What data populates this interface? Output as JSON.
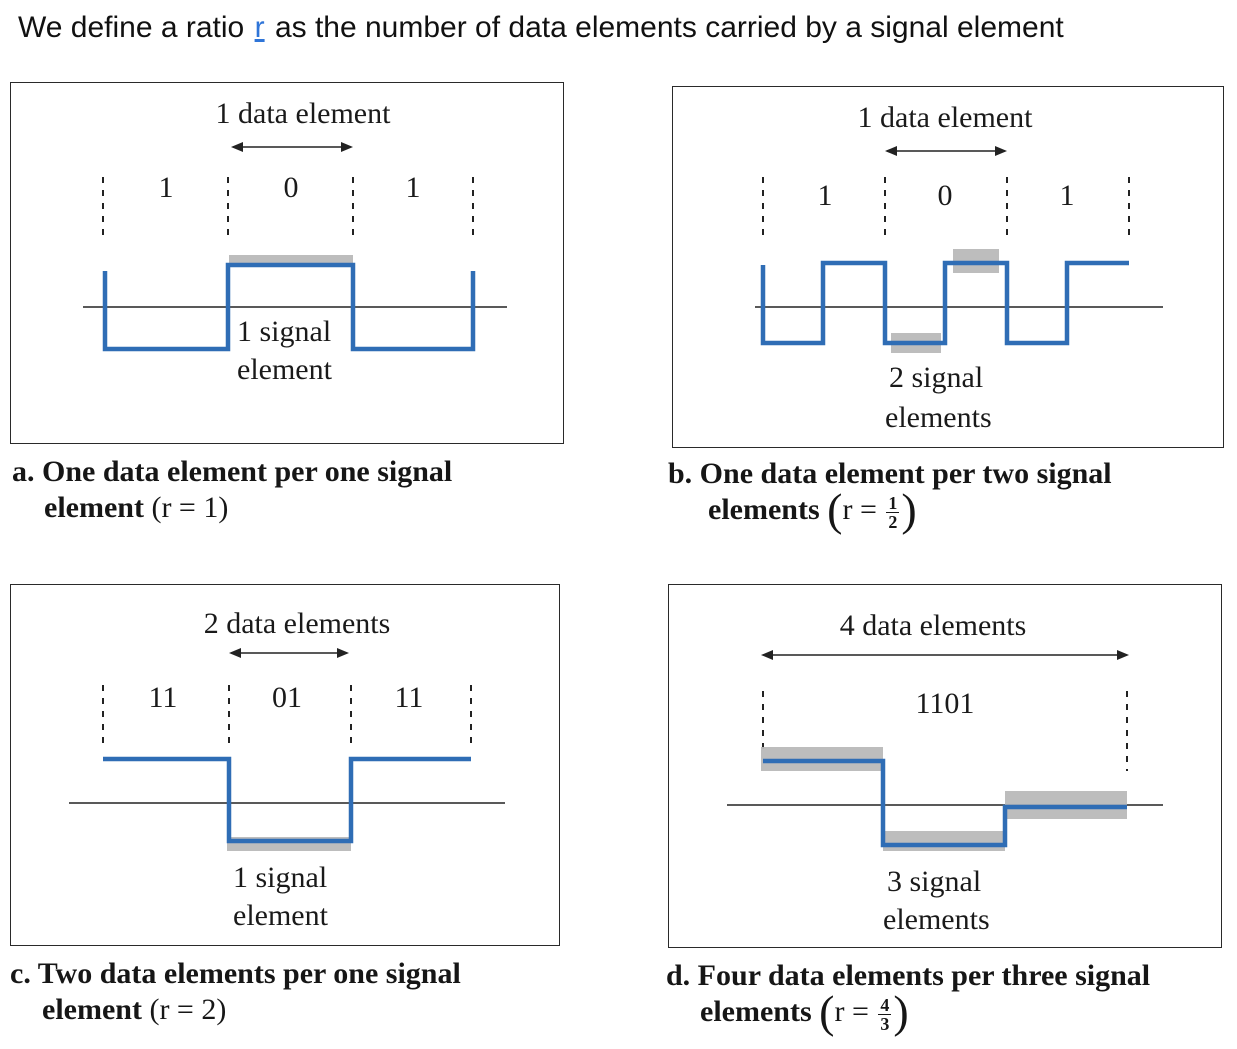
{
  "headline": {
    "before": "We define a ratio",
    "var": "r",
    "after": "as the number of data elements carried by a signal element"
  },
  "panels": {
    "a": {
      "data_label": "1 data element",
      "bits": [
        "1",
        "0",
        "1"
      ],
      "signal_label_line1": "1 signal",
      "signal_label_line2": "element",
      "caption_line1": "a. One data element per one signal",
      "caption_line2_text": "element",
      "caption_expr": "(r = 1)"
    },
    "b": {
      "data_label": "1 data element",
      "bits": [
        "1",
        "0",
        "1"
      ],
      "signal_label_line1": "2 signal",
      "signal_label_line2": "elements",
      "caption_line1": "b. One data element per two signal",
      "caption_line2_text": "elements",
      "caption_r": "r =",
      "caption_num": "1",
      "caption_den": "2"
    },
    "c": {
      "data_label": "2 data elements",
      "bits": [
        "11",
        "01",
        "11"
      ],
      "signal_label_line1": "1 signal",
      "signal_label_line2": "element",
      "caption_line1": "c. Two data elements per one signal",
      "caption_line2_text": "element",
      "caption_expr": "(r = 2)"
    },
    "d": {
      "data_label": "4 data elements",
      "bits": [
        "1101"
      ],
      "signal_label_line1": "3 signal",
      "signal_label_line2": "elements",
      "caption_line1": "d. Four data elements per three signal",
      "caption_line2_text": "elements",
      "caption_r": "r =",
      "caption_num": "4",
      "caption_den": "3"
    }
  },
  "colors": {
    "signal": "#2f6db5",
    "highlight": "#b9b9b9",
    "ratio_var": "#2f75d8"
  }
}
